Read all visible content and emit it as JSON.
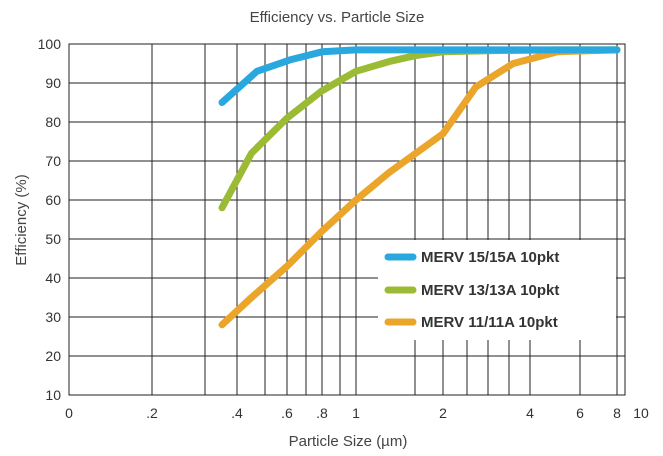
{
  "chart_data": {
    "type": "line",
    "title": "Efficiency vs. Particle Size",
    "xlabel": "Particle Size (µm)",
    "ylabel": "Efficiency (%)",
    "xscale": "log",
    "ylim": [
      10,
      100
    ],
    "y_ticks": [
      "10",
      "20",
      "30",
      "40",
      "50",
      "60",
      "70",
      "80",
      "90",
      "100"
    ],
    "x_ticks": [
      "0",
      ".2",
      ".4",
      ".6",
      ".8",
      "1",
      "2",
      "4",
      "6",
      "8",
      "10"
    ],
    "grid": true,
    "legend_position": "right",
    "series": [
      {
        "name": "MERV 15/15A 10pkt",
        "color": "#29a8df",
        "x": [
          0.35,
          0.47,
          0.62,
          0.8,
          1.0,
          1.5,
          2.0,
          3.0,
          5.0,
          8.0
        ],
        "y": [
          85,
          93,
          96,
          98,
          98.5,
          98.5,
          98.5,
          98.5,
          98.5,
          98.5
        ]
      },
      {
        "name": "MERV 13/13A 10pkt",
        "color": "#9cbb35",
        "x": [
          0.35,
          0.45,
          0.6,
          0.8,
          1.0,
          1.3,
          1.6,
          2.0,
          3.0,
          5.0,
          8.0
        ],
        "y": [
          58,
          72,
          81,
          88,
          93,
          95.5,
          97,
          98,
          98.3,
          98.5,
          98.5
        ]
      },
      {
        "name": "MERV 11/11A 10pkt",
        "color": "#eaa52a",
        "x": [
          0.35,
          0.45,
          0.6,
          0.8,
          1.0,
          1.3,
          2.0,
          2.6,
          3.5,
          5.0,
          8.0
        ],
        "y": [
          28,
          35,
          43,
          52,
          60,
          67,
          77,
          89,
          95,
          98,
          98.5
        ]
      }
    ]
  }
}
